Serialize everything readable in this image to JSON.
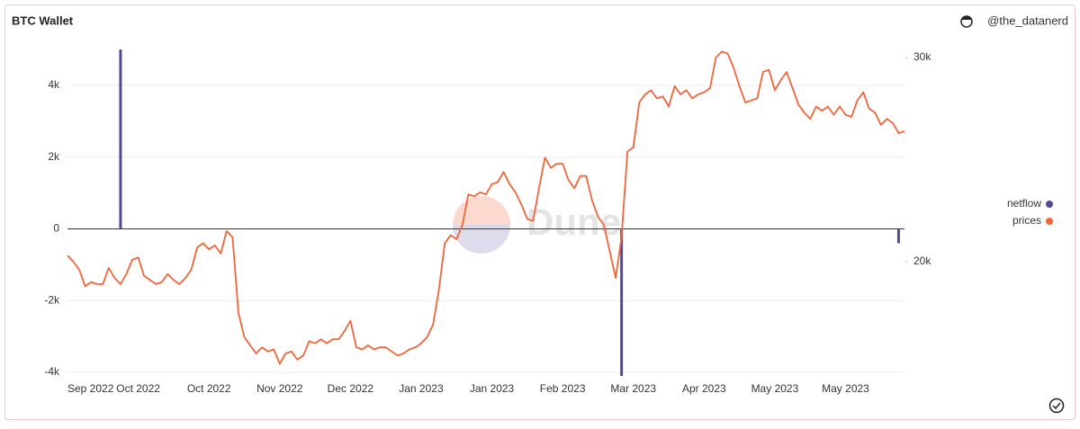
{
  "chart_data": {
    "type": "bar-line",
    "title": "BTC Wallet",
    "author": "@the_datanerd",
    "watermark": "Dune",
    "categories": [
      "Sep 2022",
      null,
      null,
      null,
      null,
      null,
      null,
      null,
      null,
      null,
      null,
      null,
      "Oct 2022",
      null,
      null,
      null,
      null,
      null,
      null,
      null,
      null,
      null,
      null,
      null,
      "Oct 2022",
      null,
      null,
      null,
      null,
      null,
      null,
      null,
      null,
      null,
      null,
      null,
      "Nov 2022",
      null,
      null,
      null,
      null,
      null,
      null,
      null,
      null,
      null,
      null,
      null,
      "Dec 2022",
      null,
      null,
      null,
      null,
      null,
      null,
      null,
      null,
      null,
      null,
      null,
      "Jan 2023",
      null,
      null,
      null,
      null,
      null,
      null,
      null,
      null,
      null,
      null,
      null,
      "Jan 2023",
      null,
      null,
      null,
      null,
      null,
      null,
      null,
      null,
      null,
      null,
      null,
      "Feb 2023",
      null,
      null,
      null,
      null,
      null,
      null,
      null,
      null,
      null,
      null,
      null,
      "Mar 2023",
      null,
      null,
      null,
      null,
      null,
      null,
      null,
      null,
      null,
      null,
      null,
      "Apr 2023",
      null,
      null,
      null,
      null,
      null,
      null,
      null,
      null,
      null,
      null,
      null,
      "May 2023",
      null,
      null,
      null,
      null,
      null,
      null,
      null,
      null,
      null,
      null,
      null,
      "May 2023",
      null,
      null,
      null,
      null,
      null,
      null,
      null,
      null,
      null,
      null
    ],
    "series": [
      {
        "name": "netflow",
        "type": "bar",
        "color": "#4f4a9c",
        "axis": "y",
        "values": [
          null,
          null,
          null,
          null,
          null,
          null,
          null,
          null,
          null,
          5000,
          null,
          null,
          null,
          null,
          null,
          null,
          null,
          null,
          null,
          null,
          null,
          null,
          null,
          null,
          null,
          null,
          null,
          null,
          null,
          null,
          null,
          null,
          null,
          null,
          null,
          null,
          null,
          null,
          null,
          null,
          null,
          null,
          null,
          null,
          null,
          null,
          null,
          null,
          null,
          null,
          null,
          null,
          null,
          null,
          null,
          null,
          null,
          null,
          null,
          null,
          null,
          null,
          null,
          null,
          null,
          null,
          null,
          null,
          null,
          null,
          null,
          null,
          null,
          null,
          null,
          null,
          null,
          null,
          null,
          null,
          null,
          null,
          null,
          null,
          null,
          null,
          null,
          null,
          null,
          null,
          null,
          null,
          null,
          null,
          -4100,
          null,
          null,
          null,
          null,
          null,
          null,
          null,
          null,
          null,
          null,
          null,
          null,
          null,
          null,
          null,
          null,
          null,
          null,
          null,
          null,
          null,
          null,
          null,
          null,
          null,
          null,
          null,
          null,
          null,
          null,
          null,
          null,
          null,
          null,
          null,
          null,
          null,
          null,
          null,
          null,
          null,
          null,
          null,
          null,
          null,
          null,
          -400,
          null
        ]
      },
      {
        "name": "prices",
        "type": "line",
        "color": "#f0653a",
        "axis": "y2",
        "values": [
          20300,
          20000,
          19600,
          18800,
          19000,
          18900,
          18900,
          19700,
          19200,
          18900,
          19400,
          20100,
          20200,
          19300,
          19100,
          18900,
          19000,
          19400,
          19100,
          18900,
          19200,
          19600,
          20700,
          20900,
          20600,
          20800,
          20400,
          21500,
          21200,
          17500,
          16300,
          15900,
          15500,
          15800,
          15600,
          15700,
          15000,
          15500,
          15600,
          15200,
          15400,
          16100,
          16000,
          16200,
          16000,
          16200,
          16200,
          16600,
          17100,
          15800,
          15700,
          15900,
          15700,
          15800,
          15800,
          15600,
          15400,
          15500,
          15700,
          15800,
          16000,
          16300,
          16900,
          18600,
          20900,
          21300,
          21100,
          21800,
          23300,
          23200,
          23400,
          23300,
          23800,
          23900,
          24400,
          23800,
          23400,
          22800,
          22100,
          22000,
          23600,
          25100,
          24600,
          24800,
          24800,
          24000,
          23600,
          24200,
          24200,
          23000,
          22200,
          21800,
          20500,
          19200,
          21200,
          25400,
          25600,
          27800,
          28200,
          28400,
          28000,
          28100,
          27600,
          28600,
          28200,
          28400,
          28000,
          28200,
          28300,
          28500,
          30000,
          30300,
          30200,
          29500,
          28600,
          27800,
          27900,
          28000,
          29300,
          29400,
          28400,
          28900,
          29300,
          28500,
          27700,
          27300,
          27000,
          27600,
          27400,
          27600,
          27200,
          27600,
          27200,
          27100,
          27900,
          28300,
          27500,
          27300,
          26700,
          27000,
          26800,
          26300,
          26400
        ]
      }
    ],
    "ylim": [
      -4100,
      5000
    ],
    "yticks": [
      {
        "value": -4000,
        "label": "-4k"
      },
      {
        "value": -2000,
        "label": "-2k"
      },
      0,
      {
        "value": 2000,
        "label": "2k"
      },
      {
        "value": 4000,
        "label": "4k"
      }
    ],
    "y2lim": [
      14400,
      30400
    ],
    "y2ticks": [
      {
        "value": 20000,
        "label": "20k"
      },
      {
        "value": 30000,
        "label": "30k"
      }
    ],
    "grid": true,
    "legend": "right"
  }
}
